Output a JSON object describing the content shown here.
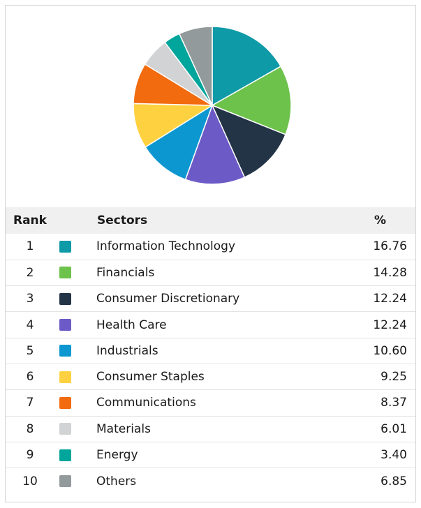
{
  "chart_data": {
    "type": "pie",
    "title": "",
    "categories": [
      "Information Technology",
      "Financials",
      "Consumer Discretionary",
      "Health Care",
      "Industrials",
      "Consumer Staples",
      "Communications",
      "Materials",
      "Energy",
      "Others"
    ],
    "values": [
      16.76,
      14.28,
      12.24,
      12.24,
      10.6,
      9.25,
      8.37,
      6.01,
      3.4,
      6.85
    ],
    "colors": [
      "#0f9aa8",
      "#6cc24a",
      "#243447",
      "#6c5bc7",
      "#0d97d1",
      "#fed141",
      "#f26b0f",
      "#d1d3d4",
      "#00a59b",
      "#929a9b"
    ]
  },
  "table": {
    "headers": {
      "rank": "Rank",
      "sector": "Sectors",
      "pct": "%"
    },
    "rows": [
      {
        "rank": "1",
        "sector": "Information Technology",
        "pct": "16.76",
        "color": "#0f9aa8"
      },
      {
        "rank": "2",
        "sector": "Financials",
        "pct": "14.28",
        "color": "#6cc24a"
      },
      {
        "rank": "3",
        "sector": "Consumer Discretionary",
        "pct": "12.24",
        "color": "#243447"
      },
      {
        "rank": "4",
        "sector": "Health Care",
        "pct": "12.24",
        "color": "#6c5bc7"
      },
      {
        "rank": "5",
        "sector": "Industrials",
        "pct": "10.60",
        "color": "#0d97d1"
      },
      {
        "rank": "6",
        "sector": "Consumer Staples",
        "pct": "9.25",
        "color": "#fed141"
      },
      {
        "rank": "7",
        "sector": "Communications",
        "pct": "8.37",
        "color": "#f26b0f"
      },
      {
        "rank": "8",
        "sector": "Materials",
        "pct": "6.01",
        "color": "#d1d3d4"
      },
      {
        "rank": "9",
        "sector": "Energy",
        "pct": "3.40",
        "color": "#00a59b"
      },
      {
        "rank": "10",
        "sector": "Others",
        "pct": "6.85",
        "color": "#929a9b"
      }
    ]
  }
}
